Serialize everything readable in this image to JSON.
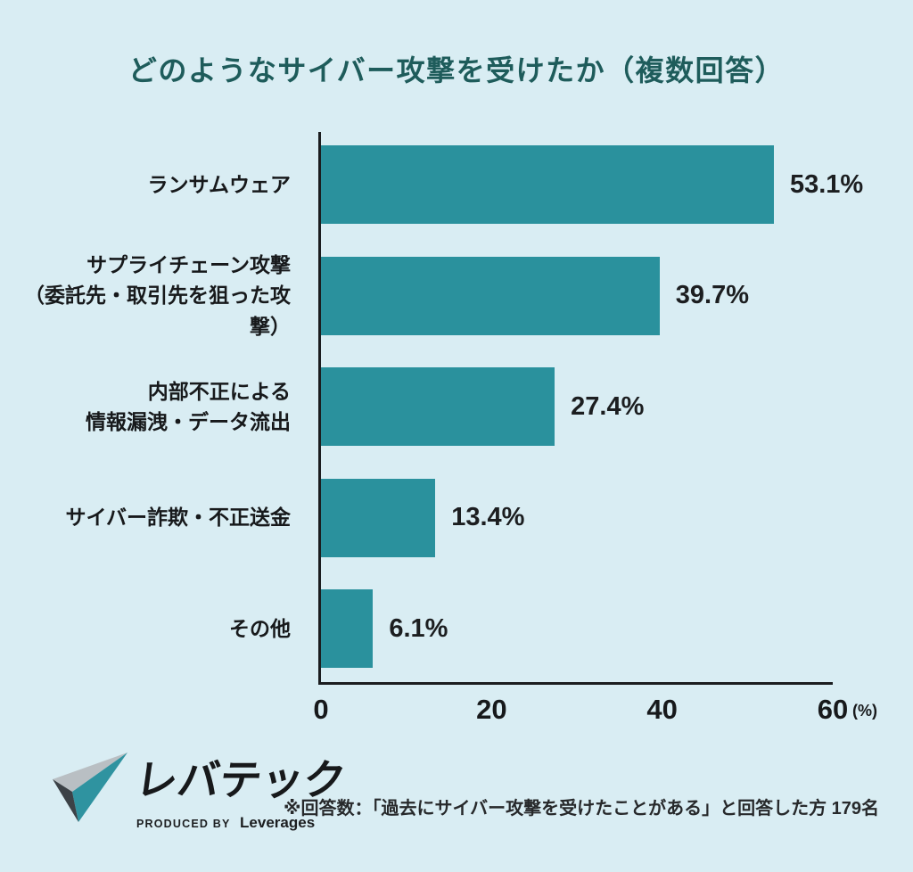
{
  "title": "どのようなサイバー攻撃を受けたか（複数回答）",
  "chart_data": {
    "type": "bar",
    "orientation": "horizontal",
    "title": "どのようなサイバー攻撃を受けたか（複数回答）",
    "categories": [
      [
        "ランサムウェア"
      ],
      [
        "サプライチェーン攻撃",
        "（委託先・取引先を狙った攻撃）"
      ],
      [
        "内部不正による",
        "情報漏洩・データ流出"
      ],
      [
        "サイバー詐欺・不正送金"
      ],
      [
        "その他"
      ]
    ],
    "values": [
      53.1,
      39.7,
      27.4,
      13.4,
      6.1
    ],
    "value_labels": [
      "53.1%",
      "39.7%",
      "27.4%",
      "13.4%",
      "6.1%"
    ],
    "xlim": [
      0,
      60
    ],
    "xticks": [
      0,
      20,
      40,
      60
    ],
    "x_unit": "(%)",
    "xlabel": "",
    "ylabel": "",
    "grid": false,
    "legend": false
  },
  "colors": {
    "background": "#d9edf3",
    "bar": "#2a919d",
    "title": "#1e5c5b",
    "axis": "#1b1d1f",
    "text": "#17191b",
    "logo_teal": "#2f93a0",
    "logo_gray": "#b9bfc3",
    "logo_dark": "#3c4247"
  },
  "footer": {
    "logo_text": "レバテック",
    "logo_sub_prefix": "PRODUCED BY",
    "logo_sub_brand": "Leverages",
    "note": "※回答数：「過去にサイバー攻撃を受けたことがある」と回答した方 179名"
  }
}
